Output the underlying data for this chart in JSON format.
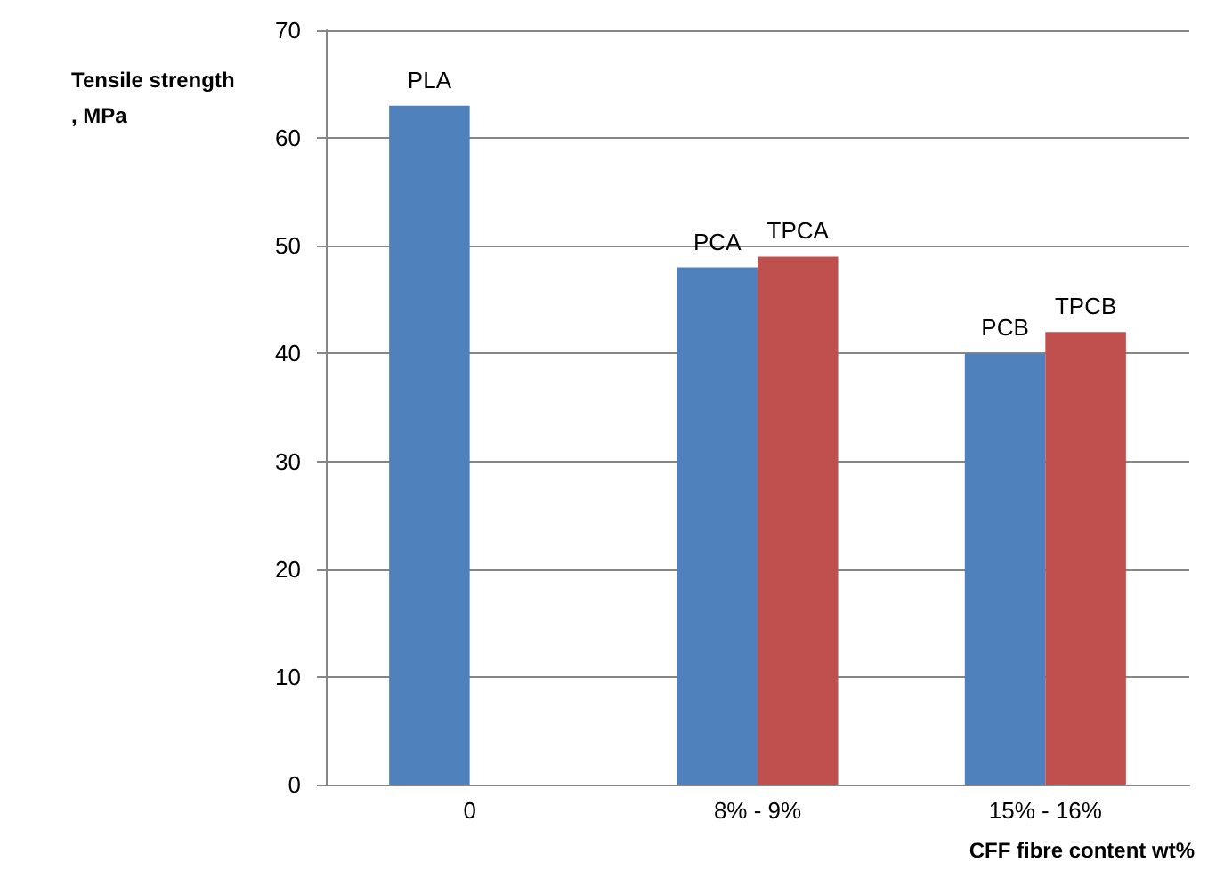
{
  "chart_data": {
    "type": "bar",
    "xlabel": "CFF fibre content wt%",
    "ylabel": "Tensile strength, MPa",
    "categories": [
      "0",
      "8% - 9%",
      "15% - 16%"
    ],
    "series": [
      {
        "color": "#4f81bd",
        "values": [
          63,
          48,
          40
        ]
      },
      {
        "color": "#c0504d",
        "values": [
          null,
          49,
          42
        ]
      }
    ],
    "annotations": [
      {
        "text": "PLA",
        "x": "0",
        "y": 63
      },
      {
        "text": "PCA",
        "x": "8% - 9%",
        "y": 48
      },
      {
        "text": "TPCA",
        "x": "8% - 9%",
        "y": 49
      },
      {
        "text": "PCB",
        "x": "15% - 16%",
        "y": 40
      },
      {
        "text": "TPCB",
        "x": "15% - 16%",
        "y": 42
      }
    ],
    "ylim": [
      0,
      70
    ],
    "yticks": [
      0,
      10,
      20,
      30,
      40,
      50,
      60,
      70
    ],
    "grid": "y"
  }
}
